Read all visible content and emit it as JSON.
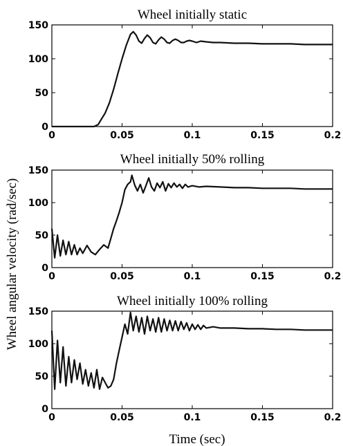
{
  "figure": {
    "ylabel": "Wheel angular velocity (rad/sec)",
    "xlabel": "Time (sec)"
  },
  "chart_data": [
    {
      "type": "line",
      "title": "Wheel initially static",
      "xlim": [
        0,
        0.2
      ],
      "ylim": [
        0,
        150
      ],
      "xticks": [
        "0",
        "0.05",
        "0.1",
        "0.15",
        "0.2"
      ],
      "yticks": [
        "0",
        "50",
        "100",
        "150"
      ],
      "grid": false,
      "series": [
        {
          "x": [
            0,
            0.01,
            0.02,
            0.03,
            0.033,
            0.035,
            0.038,
            0.041,
            0.044,
            0.047,
            0.05,
            0.053,
            0.056,
            0.058,
            0.06,
            0.062,
            0.064,
            0.066,
            0.068,
            0.07,
            0.072,
            0.074,
            0.076,
            0.078,
            0.08,
            0.082,
            0.084,
            0.086,
            0.088,
            0.09,
            0.092,
            0.094,
            0.096,
            0.098,
            0.1,
            0.103,
            0.106,
            0.11,
            0.115,
            0.12,
            0.13,
            0.14,
            0.15,
            0.16,
            0.17,
            0.18,
            0.19,
            0.2
          ],
          "values": [
            0,
            0,
            0,
            0,
            3,
            10,
            20,
            35,
            55,
            78,
            100,
            120,
            136,
            140,
            135,
            126,
            123,
            130,
            135,
            131,
            124,
            122,
            128,
            132,
            129,
            124,
            123,
            127,
            129,
            127,
            124,
            124,
            126,
            127,
            126,
            124,
            126,
            125,
            124,
            124,
            123,
            123,
            122,
            122,
            122,
            121,
            121,
            121
          ]
        }
      ]
    },
    {
      "type": "line",
      "title": "Wheel initially 50% rolling",
      "xlim": [
        0,
        0.2
      ],
      "ylim": [
        0,
        150
      ],
      "xticks": [
        "0",
        "0.05",
        "0.1",
        "0.15",
        "0.2"
      ],
      "yticks": [
        "0",
        "50",
        "100",
        "150"
      ],
      "grid": false,
      "series": [
        {
          "x": [
            0,
            0.002,
            0.004,
            0.006,
            0.008,
            0.01,
            0.012,
            0.014,
            0.016,
            0.018,
            0.02,
            0.022,
            0.025,
            0.028,
            0.031,
            0.034,
            0.037,
            0.04,
            0.042,
            0.044,
            0.046,
            0.048,
            0.05,
            0.052,
            0.054,
            0.056,
            0.057,
            0.059,
            0.061,
            0.063,
            0.065,
            0.067,
            0.069,
            0.071,
            0.073,
            0.075,
            0.077,
            0.079,
            0.081,
            0.083,
            0.085,
            0.087,
            0.089,
            0.091,
            0.093,
            0.095,
            0.097,
            0.1,
            0.105,
            0.11,
            0.12,
            0.13,
            0.14,
            0.15,
            0.16,
            0.17,
            0.18,
            0.19,
            0.2
          ],
          "values": [
            60,
            15,
            50,
            18,
            42,
            20,
            40,
            20,
            35,
            20,
            30,
            22,
            34,
            24,
            20,
            28,
            35,
            30,
            45,
            60,
            72,
            85,
            100,
            120,
            128,
            132,
            142,
            127,
            118,
            128,
            115,
            126,
            138,
            124,
            118,
            130,
            123,
            132,
            118,
            129,
            123,
            130,
            124,
            128,
            122,
            128,
            124,
            126,
            124,
            125,
            124,
            123,
            123,
            122,
            122,
            122,
            121,
            121,
            121
          ]
        }
      ]
    },
    {
      "type": "line",
      "title": "Wheel initially 100% rolling",
      "xlim": [
        0,
        0.2
      ],
      "ylim": [
        0,
        150
      ],
      "xticks": [
        "0",
        "0.05",
        "0.1",
        "0.15",
        "0.2"
      ],
      "yticks": [
        "0",
        "50",
        "100",
        "150"
      ],
      "grid": false,
      "series": [
        {
          "x": [
            0,
            0.002,
            0.004,
            0.006,
            0.008,
            0.01,
            0.012,
            0.014,
            0.016,
            0.018,
            0.02,
            0.022,
            0.024,
            0.026,
            0.028,
            0.03,
            0.032,
            0.034,
            0.036,
            0.038,
            0.04,
            0.042,
            0.044,
            0.046,
            0.048,
            0.05,
            0.052,
            0.054,
            0.056,
            0.058,
            0.06,
            0.062,
            0.064,
            0.066,
            0.068,
            0.07,
            0.072,
            0.074,
            0.076,
            0.078,
            0.08,
            0.082,
            0.084,
            0.086,
            0.088,
            0.09,
            0.092,
            0.094,
            0.096,
            0.098,
            0.1,
            0.102,
            0.104,
            0.106,
            0.108,
            0.11,
            0.115,
            0.12,
            0.13,
            0.14,
            0.15,
            0.16,
            0.17,
            0.18,
            0.19,
            0.2
          ],
          "values": [
            120,
            30,
            105,
            40,
            95,
            35,
            80,
            40,
            75,
            45,
            70,
            38,
            60,
            35,
            55,
            32,
            60,
            30,
            48,
            40,
            32,
            35,
            45,
            70,
            90,
            110,
            130,
            115,
            148,
            120,
            142,
            118,
            140,
            115,
            142,
            120,
            138,
            118,
            140,
            118,
            138,
            120,
            136,
            120,
            135,
            120,
            134,
            122,
            132,
            120,
            130,
            122,
            129,
            122,
            128,
            124,
            126,
            124,
            124,
            123,
            123,
            122,
            122,
            121,
            121,
            121
          ]
        }
      ]
    }
  ]
}
